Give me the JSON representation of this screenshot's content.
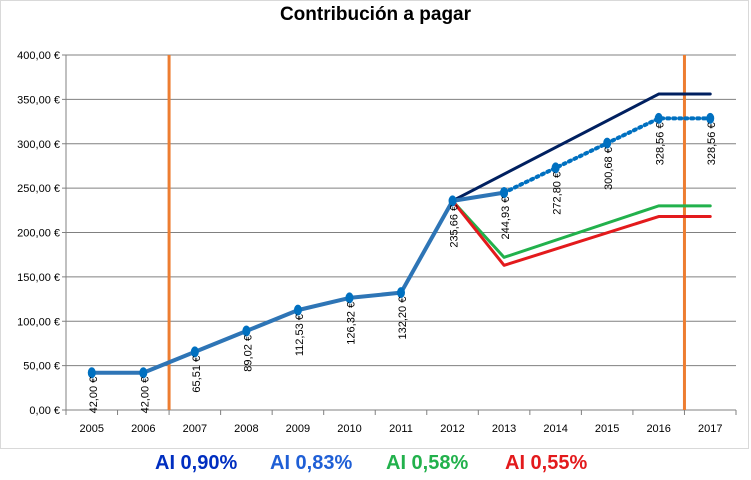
{
  "colors": {
    "main_series": "#2e75b6",
    "marker": "#0070c0",
    "ai_090": "#002060",
    "ai_058": "#22b14c",
    "ai_055": "#e31a1c",
    "vertical_markers": "#ed7d31",
    "legend_ai_090": "#002ec0",
    "legend_ai_083": "#1f5fd6",
    "legend_ai_058": "#22b14c",
    "legend_ai_055": "#e31a1c"
  },
  "chart_data": {
    "type": "line",
    "title": "Contribución a pagar",
    "xlabel": "",
    "ylabel": "",
    "categories": [
      "2005",
      "2006",
      "2007",
      "2008",
      "2009",
      "2010",
      "2011",
      "2012",
      "2013",
      "2014",
      "2015",
      "2016",
      "2017"
    ],
    "ylim": [
      0,
      400
    ],
    "yticks": [
      "0,00 €",
      "50,00 €",
      "100,00 €",
      "150,00 €",
      "200,00 €",
      "250,00 €",
      "300,00 €",
      "350,00 €",
      "400,00 €"
    ],
    "grid": true,
    "series": [
      {
        "key": "actual",
        "style": "solid",
        "x": [
          "2005",
          "2006",
          "2007",
          "2008",
          "2009",
          "2010",
          "2011",
          "2012",
          "2013"
        ],
        "values": [
          42.0,
          42.0,
          65.51,
          89.02,
          112.53,
          126.32,
          132.2,
          235.66,
          244.93
        ],
        "labels": [
          "42,00 €",
          "42,00 €",
          "65,51 €",
          "89,02 €",
          "112,53 €",
          "126,32 €",
          "132,20 €",
          "235,66 €",
          "244,93 €"
        ]
      },
      {
        "key": "projection",
        "style": "dotted",
        "x": [
          "2013",
          "2014",
          "2015",
          "2016",
          "2017"
        ],
        "values": [
          244.93,
          272.8,
          300.68,
          328.56,
          328.56
        ],
        "labels": [
          "",
          "272,80 €",
          "300,68 €",
          "328,56 €",
          "328,56 €"
        ]
      },
      {
        "key": "ai_090",
        "style": "solid",
        "x": [
          "2012",
          "2016",
          "2017"
        ],
        "values": [
          235.66,
          356,
          356
        ]
      },
      {
        "key": "ai_058",
        "style": "solid",
        "x": [
          "2012",
          "2013",
          "2016",
          "2017"
        ],
        "values": [
          235.66,
          172,
          230,
          230
        ]
      },
      {
        "key": "ai_055",
        "style": "solid",
        "x": [
          "2012",
          "2013",
          "2016",
          "2017"
        ],
        "values": [
          235.66,
          163,
          218,
          218
        ]
      }
    ],
    "vertical_markers_between": [
      [
        "2006",
        "2007"
      ],
      [
        "2016",
        "2017"
      ]
    ]
  },
  "legend": {
    "ai_090": "AI 0,90%",
    "ai_083": "AI 0,83%",
    "ai_058": "AI 0,58%",
    "ai_055": "AI 0,55%"
  }
}
